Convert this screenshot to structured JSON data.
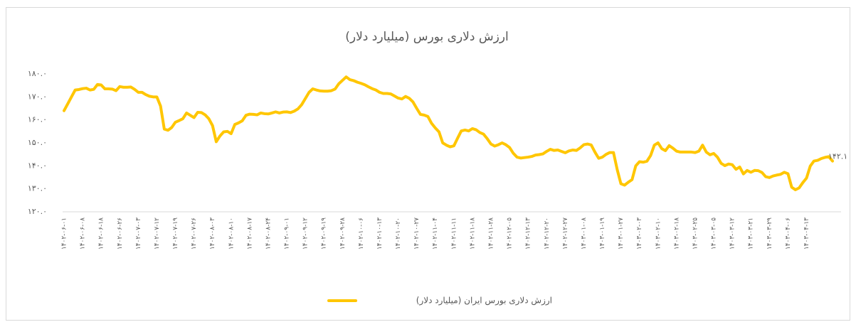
{
  "chart_data": {
    "type": "line",
    "title": "ارزش دلاری بورس (میلیارد دلار)",
    "categories": [
      "۱۴۰۲-۰۶-۰۱",
      null,
      null,
      null,
      null,
      "۱۴۰۲-۰۶-۰۸",
      null,
      null,
      null,
      null,
      "۱۴۰۲-۰۶-۱۸",
      null,
      null,
      null,
      null,
      "۱۴۰۲-۰۶-۲۶",
      null,
      null,
      null,
      null,
      "۱۴۰۲-۰۷-۰۳",
      null,
      null,
      null,
      null,
      "۱۴۰۲-۰۷-۱۲",
      null,
      null,
      null,
      null,
      "۱۴۰۲-۰۷-۱۹",
      null,
      null,
      null,
      null,
      "۱۴۰۲-۰۷-۲۶",
      null,
      null,
      null,
      null,
      "۱۴۰۲-۰۸-۰۳",
      null,
      null,
      null,
      null,
      "۱۴۰۲-۰۸-۱۰",
      null,
      null,
      null,
      null,
      "۱۴۰۲-۰۸-۱۷",
      null,
      null,
      null,
      null,
      "۱۴۰۲-۰۸-۲۴",
      null,
      null,
      null,
      null,
      "۱۴۰۲-۰۹-۰۱",
      null,
      null,
      null,
      null,
      "۱۴۰۲-۰۹-۱۲",
      null,
      null,
      null,
      null,
      "۱۴۰۲-۰۹-۱۹",
      null,
      null,
      null,
      null,
      "۱۴۰۲-۰۹-۲۸",
      null,
      null,
      null,
      null,
      "۱۴۰۲-۱۰-۰۶",
      null,
      null,
      null,
      null,
      "۱۴۰۲-۱۰-۱۳",
      null,
      null,
      null,
      null,
      "۱۴۰۲-۱۰-۲۰",
      null,
      null,
      null,
      null,
      "۱۴۰۲-۱۰-۲۷",
      null,
      null,
      null,
      null,
      "۱۴۰۲-۱۱-۰۴",
      null,
      null,
      null,
      null,
      "۱۴۰۲-۱۱-۱۱",
      null,
      null,
      null,
      null,
      "۱۴۰۲-۱۱-۱۸",
      null,
      null,
      null,
      null,
      "۱۴۰۲-۱۱-۲۸",
      null,
      null,
      null,
      null,
      "۱۴۰۲-۱۲-۰۵",
      null,
      null,
      null,
      null,
      "۱۴۰۲-۱۲-۱۳",
      null,
      null,
      null,
      null,
      "۱۴۰۲-۱۲-۲۰",
      null,
      null,
      null,
      null,
      "۱۴۰۲-۱۲-۲۷",
      null,
      null,
      null,
      null,
      "۱۴۰۳-۰۱-۰۸",
      null,
      null,
      null,
      null,
      "۱۴۰۳-۰۱-۱۹",
      null,
      null,
      null,
      null,
      "۱۴۰۳-۰۱-۲۷",
      null,
      null,
      null,
      null,
      "۱۴۰۳-۰۲-۰۳",
      null,
      null,
      null,
      null,
      "۱۴۰۳-۰۲-۱۰",
      null,
      null,
      null,
      null,
      "۱۴۰۳-۰۲-۱۸",
      null,
      null,
      null,
      null,
      "۱۴۰۳-۰۲-۲۵",
      null,
      null,
      null,
      null,
      "۱۴۰۳-۰۳-۰۵",
      null,
      null,
      null,
      null,
      "۱۴۰۳-۰۳-۱۲",
      null,
      null,
      null,
      null,
      "۱۴۰۳-۰۳-۲۱",
      null,
      null,
      null,
      null,
      "۱۴۰۳-۰۳-۲۹",
      null,
      null,
      null,
      null,
      "۱۴۰۳-۰۴-۰۶",
      null,
      null,
      null,
      null,
      "۱۴۰۳-۰۴-۱۳",
      null,
      null,
      null,
      null,
      null,
      null,
      null
    ],
    "series": [
      {
        "name": "ارزش دلاری بورس ایران (میلیارد دلار)",
        "color": "#ffc600",
        "values": [
          164,
          167,
          170,
          173,
          173.2,
          173.6,
          173.8,
          173,
          173.3,
          175.4,
          175.2,
          173.5,
          173.5,
          173.4,
          172.7,
          174.5,
          174.2,
          174.2,
          174.3,
          173.3,
          172,
          172,
          171,
          170.3,
          170,
          170,
          166,
          156,
          155.5,
          156.7,
          159,
          159.7,
          160.5,
          163,
          162,
          161,
          163.3,
          163.2,
          162.2,
          160.5,
          157.5,
          150.5,
          153,
          154.8,
          155,
          154,
          158,
          158.7,
          159.6,
          162,
          162.5,
          162.4,
          162.2,
          163,
          162.7,
          162.6,
          163,
          163.5,
          163,
          163.4,
          163.5,
          163.2,
          163.8,
          164.8,
          166.6,
          169.3,
          172,
          173.5,
          173,
          172.6,
          172.5,
          172.5,
          172.7,
          173.4,
          175.7,
          177.2,
          178.7,
          177.5,
          177.1,
          176.4,
          175.9,
          175.3,
          174.4,
          173.6,
          173,
          172,
          171.5,
          171.5,
          171.3,
          170.4,
          169.5,
          169.1,
          170.2,
          169.4,
          167.8,
          165,
          162.4,
          162.1,
          161.5,
          158.5,
          156.5,
          154.8,
          150,
          149,
          148.3,
          148.7,
          152,
          155.2,
          155.6,
          155.2,
          156.2,
          155.7,
          154.5,
          153.8,
          151.8,
          149.5,
          148.6,
          149.2,
          150,
          149.2,
          148,
          145.5,
          143.8,
          143.4,
          143.6,
          143.8,
          144.1,
          144.7,
          144.9,
          145.2,
          146.3,
          147.2,
          146.7,
          146.9,
          146.3,
          145.7,
          146.5,
          146.9,
          146.7,
          147.8,
          149.2,
          149.5,
          149.1,
          146,
          143.3,
          143.8,
          145,
          145.8,
          145.8,
          138.4,
          132.2,
          131.6,
          132.9,
          134,
          140,
          141.8,
          141.6,
          142,
          144.5,
          149,
          150,
          147.5,
          146.6,
          148.8,
          147.7,
          146.4,
          146,
          146,
          146,
          146,
          145.8,
          146.4,
          149,
          146,
          144.8,
          145.4,
          143.8,
          141.1,
          140.1,
          140.8,
          140.5,
          138.5,
          139.5,
          136.5,
          138,
          137.2,
          138,
          137.9,
          137.1,
          135.3,
          134.9,
          135.6,
          136,
          136.3,
          137.2,
          136.6,
          130.7,
          129.6,
          130.4,
          132.7,
          134.7,
          139.9,
          142.1,
          142.4,
          143.2,
          143.7,
          144,
          142.1
        ],
        "value_labels": [
          null,
          null,
          null,
          null,
          null,
          null,
          null,
          null,
          null,
          null,
          null,
          null,
          null,
          null,
          null,
          null,
          null,
          null,
          null,
          null,
          null,
          null,
          null,
          null,
          null,
          null,
          null,
          null,
          null,
          null,
          null,
          null,
          null,
          null,
          null,
          null,
          null,
          null,
          null,
          null,
          null,
          null,
          null,
          null,
          null,
          null,
          null,
          null,
          null,
          null,
          null,
          null,
          null,
          null,
          null,
          null,
          null,
          null,
          null,
          null,
          null,
          null,
          null,
          null,
          null,
          null,
          null,
          null,
          null,
          null,
          null,
          null,
          null,
          null,
          null,
          null,
          null,
          null,
          null,
          null,
          null,
          null,
          null,
          null,
          null,
          null,
          null,
          null,
          null,
          null,
          null,
          null,
          null,
          null,
          null,
          null,
          null,
          null,
          null,
          null,
          null,
          null,
          null,
          null,
          null,
          null,
          null,
          null,
          null,
          null,
          null,
          null,
          null,
          null,
          null,
          null,
          null,
          null,
          null,
          null,
          null,
          null,
          null,
          null,
          null,
          null,
          null,
          null,
          null,
          null,
          null,
          null,
          null,
          null,
          null,
          null,
          null,
          null,
          null,
          null,
          null,
          null,
          null,
          null,
          null,
          null,
          null,
          null,
          null,
          null,
          null,
          null,
          null,
          null,
          null,
          null,
          null,
          null,
          null,
          null,
          null,
          null,
          null,
          null,
          null,
          null,
          null,
          null,
          null,
          null,
          null,
          null,
          null,
          null,
          null,
          null,
          null,
          null,
          null,
          null,
          null,
          null,
          null,
          null,
          null,
          null,
          null,
          null,
          null,
          null,
          null,
          null,
          null,
          null,
          null,
          null,
          null,
          null,
          null,
          null,
          null,
          null,
          null,
          null,
          null,
          null,
          null,
          "۱۴۲.۱"
        ]
      }
    ],
    "ylim": [
      120,
      180
    ],
    "yticks": [
      {
        "value": 120,
        "label": "۱۲۰.۰"
      },
      {
        "value": 130,
        "label": "۱۳۰.۰"
      },
      {
        "value": 140,
        "label": "۱۴۰.۰"
      },
      {
        "value": 150,
        "label": "۱۵۰.۰"
      },
      {
        "value": 160,
        "label": "۱۶۰.۰"
      },
      {
        "value": 170,
        "label": "۱۷۰.۰"
      },
      {
        "value": 180,
        "label": "۱۸۰.۰"
      }
    ],
    "grid": false,
    "legend": "bottom"
  }
}
